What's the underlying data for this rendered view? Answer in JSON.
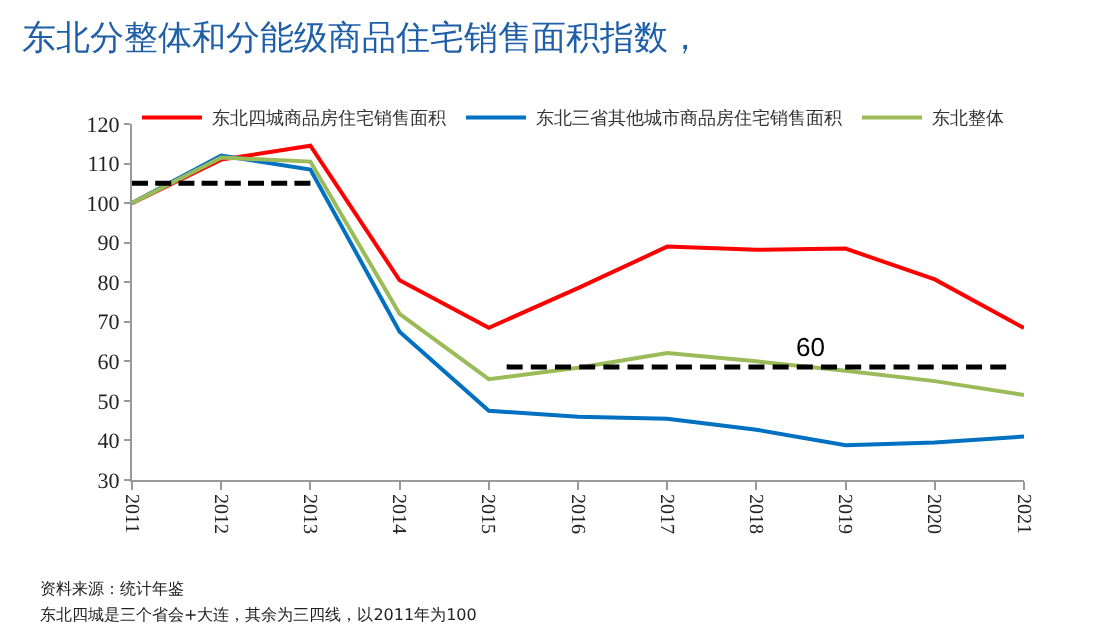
{
  "chart_data": {
    "type": "line",
    "title": "东北分整体和分能级商品住宅销售面积指数，",
    "x": [
      2011,
      2012,
      2013,
      2014,
      2015,
      2016,
      2017,
      2018,
      2019,
      2020,
      2021
    ],
    "series": [
      {
        "name": "东北四城商品房住宅销售面积",
        "color": "#ff0000",
        "values": [
          100,
          111,
          114.5,
          80.5,
          68.5,
          78.5,
          89,
          88.2,
          88.5,
          80.7,
          68.4
        ]
      },
      {
        "name": "东北三省其他城市商品房住宅销售面积",
        "color": "#0070c0",
        "values": [
          100,
          112,
          108.5,
          67.5,
          47.5,
          46,
          45.5,
          42.7,
          38.8,
          39.5,
          41
        ]
      },
      {
        "name": "东北整体",
        "color": "#9bbb59",
        "values": [
          100,
          111.5,
          110.5,
          72,
          55.5,
          58.4,
          62.1,
          60,
          57.6,
          55,
          51.5
        ]
      },
      {
        "type": "line",
        "color": "#000000",
        "line_style": "dashed",
        "x": [
          2011,
          2013
        ],
        "values": [
          105,
          105
        ]
      },
      {
        "type": "line",
        "color": "#000000",
        "line_style": "dashed",
        "x": [
          2015.2,
          2020.8
        ],
        "values": [
          58.6,
          58.6
        ]
      }
    ],
    "xlim": [
      2011,
      2021
    ],
    "xticks": [
      2011,
      2012,
      2013,
      2014,
      2015,
      2016,
      2017,
      2018,
      2019,
      2020,
      2021
    ],
    "ylim": [
      30,
      120
    ],
    "yticks": [
      30,
      40,
      50,
      60,
      70,
      80,
      90,
      100,
      110,
      120
    ],
    "legend": "top",
    "marker": "none",
    "line_style": "solid",
    "annotations": [
      {
        "text": "60",
        "x": 2018.6,
        "y": 58.6
      },
      "资料来源：统计年鉴",
      "东北四城是三个省会+大连，其余为三四线，以2011年为100"
    ]
  }
}
